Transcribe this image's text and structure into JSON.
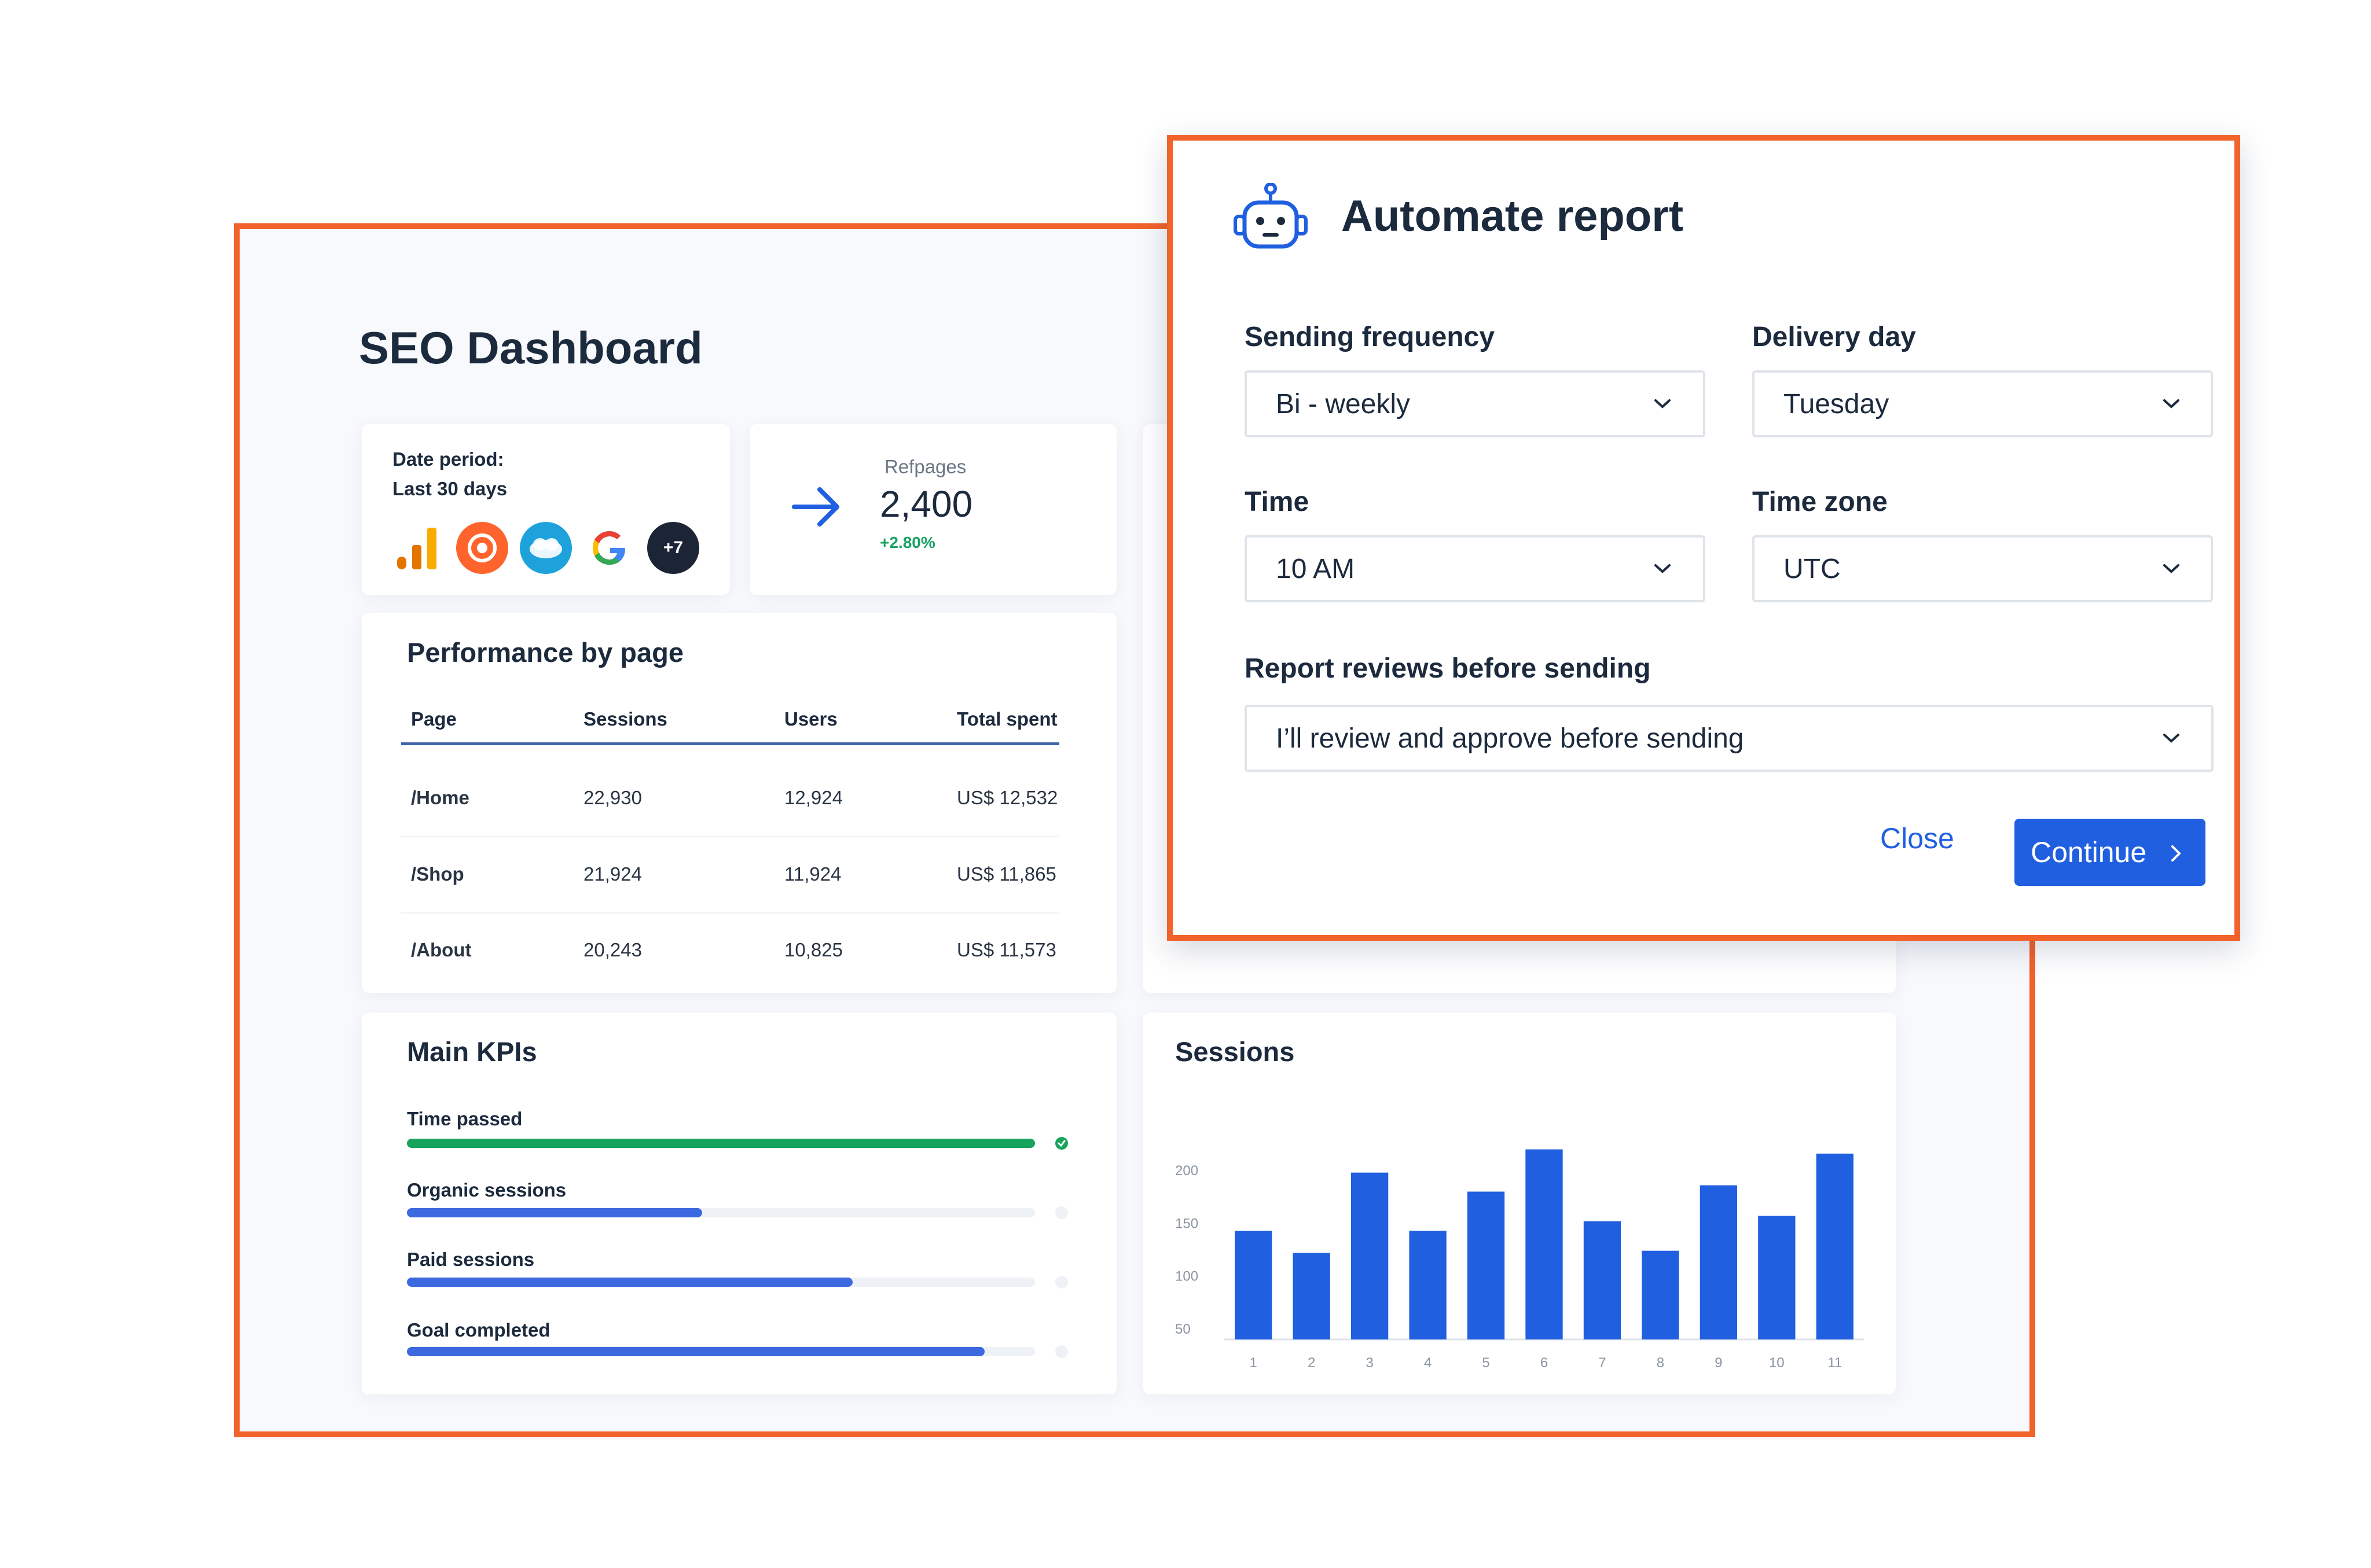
{
  "dashboard": {
    "title": "SEO Dashboard",
    "date_card": {
      "label": "Date period:",
      "value": "Last 30 days",
      "sources": [
        "google-analytics-icon",
        "semrush-icon",
        "salesforce-icon",
        "google-icon"
      ],
      "more_badge": "+7"
    },
    "refpages": {
      "label": "Refpages",
      "value": "2,400",
      "change": "+2.80%",
      "change_color": "#1aa365"
    },
    "performance": {
      "title": "Performance by page",
      "columns": [
        "Page",
        "Sessions",
        "Users",
        "Total spent"
      ],
      "rows": [
        [
          "/Home",
          "22,930",
          "12,924",
          "US$ 12,532"
        ],
        [
          "/Shop",
          "21,924",
          "11,924",
          "US$ 11,865"
        ],
        [
          "/About",
          "20,243",
          "10,825",
          "US$ 11,573"
        ]
      ]
    },
    "kpis": {
      "title": "Main KPIs",
      "items": [
        {
          "label": "Time passed",
          "progress": 1.0,
          "color": "#16a45c",
          "complete": true
        },
        {
          "label": "Organic sessions",
          "progress": 0.47,
          "color": "#3d69e0",
          "complete": false
        },
        {
          "label": "Paid sessions",
          "progress": 0.71,
          "color": "#3d69e0",
          "complete": false
        },
        {
          "label": "Goal completed",
          "progress": 0.92,
          "color": "#3d69e0",
          "complete": false
        }
      ]
    },
    "sessions": {
      "title": "Sessions"
    }
  },
  "chart_data": {
    "type": "bar",
    "title": "Sessions",
    "categories": [
      "1",
      "2",
      "3",
      "4",
      "5",
      "6",
      "7",
      "8",
      "9",
      "10",
      "11"
    ],
    "values": [
      143,
      122,
      198,
      143,
      180,
      220,
      152,
      124,
      186,
      157,
      216
    ],
    "yticks": [
      "200",
      "150",
      "100",
      "50"
    ],
    "ylim": [
      40,
      240
    ],
    "bar_color": "#1f5fe0"
  },
  "modal": {
    "title": "Automate report",
    "icon": "robot-icon",
    "sending_frequency": {
      "label": "Sending frequency",
      "value": "Bi - weekly"
    },
    "delivery_day": {
      "label": "Delivery day",
      "value": "Tuesday"
    },
    "time": {
      "label": "Time",
      "value": "10 AM"
    },
    "time_zone": {
      "label": "Time zone",
      "value": "UTC"
    },
    "review": {
      "label": "Report reviews before sending",
      "value": "I’ll review and approve before sending"
    },
    "close_label": "Close",
    "continue_label": "Continue",
    "accent_color": "#1f5fe0",
    "frame_color": "#f2622b"
  }
}
